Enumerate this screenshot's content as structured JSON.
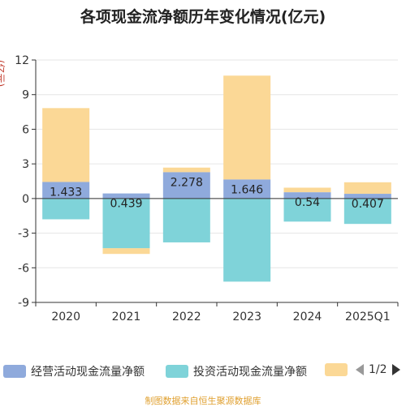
{
  "title": "各项现金流净额历年变化情况(亿元)",
  "unit_label": "(亿元)",
  "source": "制图数据来自恒生聚源数据库",
  "pager": "1/2",
  "colors": {
    "operating": "#8faadc",
    "investing": "#7fd3d9",
    "financing": "#fbd896",
    "axis": "#333333",
    "grid": "#e6e6e6"
  },
  "chart_data": {
    "type": "bar",
    "stacked": true,
    "categories": [
      "2020",
      "2021",
      "2022",
      "2023",
      "2024",
      "2025Q1"
    ],
    "y_ticks": [
      "12",
      "9",
      "6",
      "3",
      "0",
      "-3",
      "-6",
      "-9"
    ],
    "ylim": [
      -9,
      12
    ],
    "series": [
      {
        "name": "经营活动现金流量净额",
        "values": [
          1.433,
          0.439,
          2.278,
          1.646,
          0.54,
          0.407
        ],
        "labels": [
          "1.433",
          "0.439",
          "2.278",
          "1.646",
          "0.54",
          "0.407"
        ]
      },
      {
        "name": "投资活动现金流量净额",
        "values": [
          -1.8,
          -4.3,
          -3.8,
          -7.2,
          -2.0,
          -2.2
        ]
      },
      {
        "values": [
          6.4,
          -0.5,
          0.4,
          9.0,
          0.4,
          1.0
        ]
      }
    ],
    "grid": true,
    "legend_position": "bottom"
  }
}
